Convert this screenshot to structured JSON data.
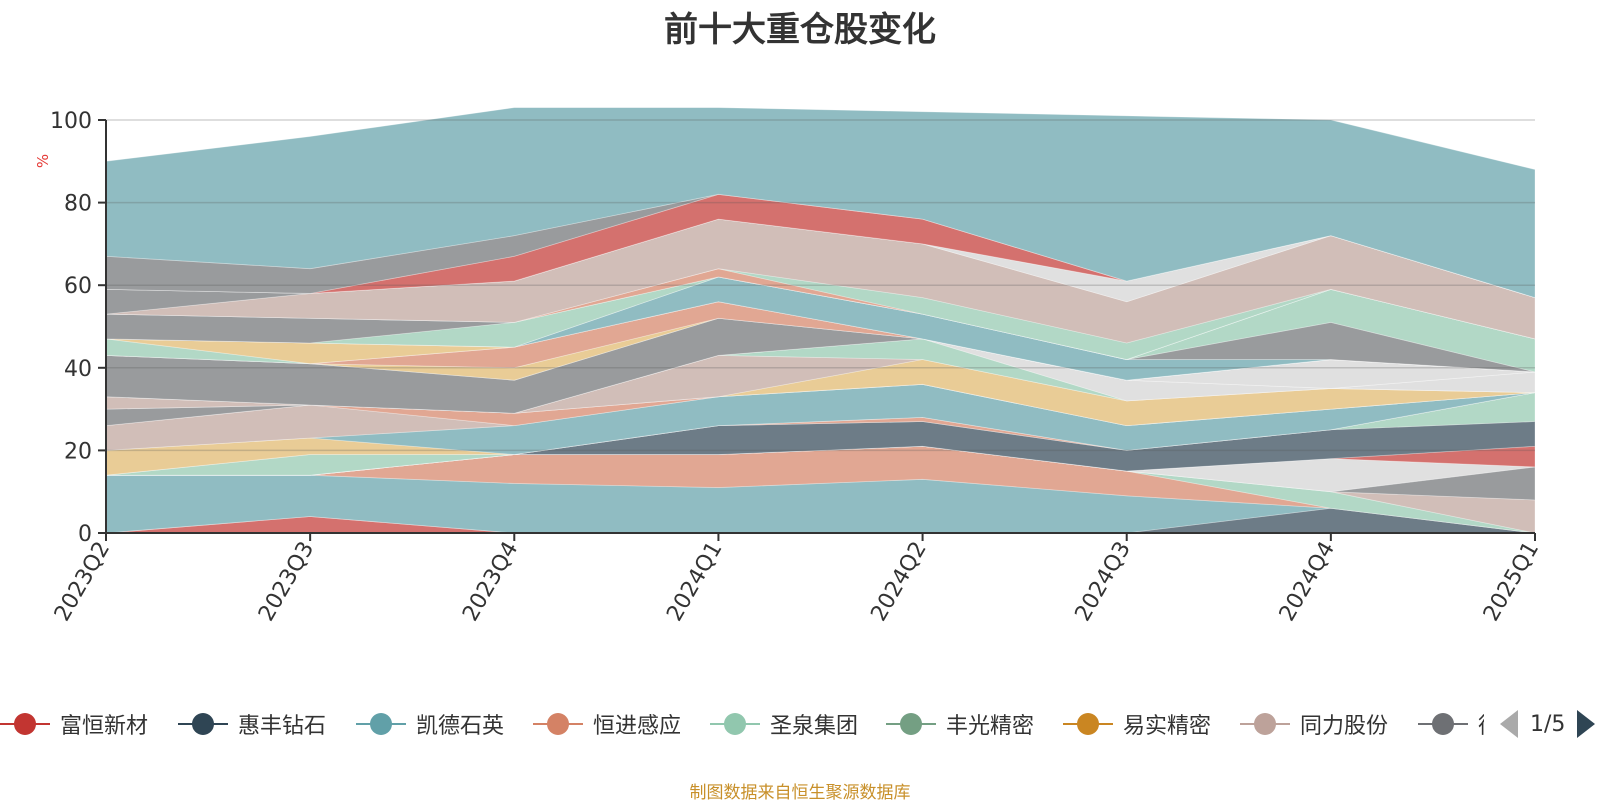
{
  "title": "前十大重仓股变化",
  "source_note": "制图数据来自恒生聚源数据库",
  "legend_pager": "1/5",
  "chart_data": {
    "type": "area",
    "stacked": true,
    "title": "前十大重仓股变化",
    "ylabel": "%",
    "ylim": [
      0,
      100
    ],
    "yticks": [
      0,
      20,
      40,
      60,
      80,
      100
    ],
    "grid": true,
    "legend_position": "bottom",
    "categories": [
      "2023Q2",
      "2023Q3",
      "2023Q4",
      "2024Q1",
      "2024Q2",
      "2024Q3",
      "2024Q4",
      "2025Q1"
    ],
    "series": [
      {
        "name": "富恒新材",
        "color": "#c23531",
        "values": [
          0,
          4,
          0,
          0,
          0,
          0,
          0,
          0
        ]
      },
      {
        "name": "",
        "color": "#2f4554",
        "values": [
          0,
          0,
          0,
          0,
          0,
          0,
          6,
          0
        ]
      },
      {
        "name": "",
        "color": "#61a0a8",
        "values": [
          14,
          10,
          12,
          11,
          13,
          9,
          0,
          0
        ]
      },
      {
        "name": "",
        "color": "#d48265",
        "values": [
          0,
          0,
          7,
          8,
          8,
          6,
          0,
          0
        ]
      },
      {
        "name": "",
        "color": "#91c7ae",
        "values": [
          0,
          0,
          0,
          0,
          0,
          0,
          4,
          0
        ]
      },
      {
        "name": "",
        "color": "#bda29a",
        "values": [
          0,
          0,
          0,
          0,
          0,
          0,
          0,
          8
        ]
      },
      {
        "name": "",
        "color": "#6e7074",
        "values": [
          0,
          0,
          0,
          0,
          0,
          0,
          0,
          8
        ]
      },
      {
        "name": "",
        "color": "#d3d3d3",
        "values": [
          0,
          0,
          0,
          0,
          0,
          0,
          8,
          0
        ]
      },
      {
        "name": "",
        "color": "#c23531",
        "values": [
          0,
          0,
          0,
          0,
          0,
          0,
          0,
          5
        ]
      },
      {
        "name": "",
        "color": "#2f4554",
        "values": [
          0,
          0,
          0,
          7,
          6,
          5,
          7,
          6
        ]
      },
      {
        "name": "",
        "color": "#91c7ae",
        "values": [
          0,
          5,
          0,
          0,
          0,
          0,
          0,
          7
        ]
      },
      {
        "name": "",
        "color": "#d48265",
        "values": [
          0,
          0,
          0,
          0,
          1,
          0,
          0,
          0
        ]
      },
      {
        "name": "",
        "color": "#e0b76a",
        "values": [
          6,
          4,
          0,
          0,
          0,
          0,
          0,
          0
        ]
      },
      {
        "name": "",
        "color": "#61a0a8",
        "values": [
          0,
          0,
          7,
          7,
          8,
          6,
          5,
          0
        ]
      },
      {
        "name": "",
        "color": "#bda29a",
        "values": [
          6,
          8,
          0,
          0,
          0,
          0,
          0,
          0
        ]
      },
      {
        "name": "",
        "color": "#d48265",
        "values": [
          0,
          0,
          3,
          0,
          0,
          0,
          0,
          0
        ]
      },
      {
        "name": "",
        "color": "#6e7074",
        "values": [
          4,
          0,
          0,
          0,
          0,
          0,
          0,
          0
        ]
      },
      {
        "name": "",
        "color": "#e0b76a",
        "values": [
          0,
          0,
          0,
          0,
          6,
          6,
          5,
          0
        ]
      },
      {
        "name": "",
        "color": "#bda29a",
        "values": [
          3,
          0,
          0,
          10,
          0,
          0,
          0,
          0
        ]
      },
      {
        "name": "",
        "color": "#91c7ae",
        "values": [
          0,
          0,
          0,
          0,
          5,
          0,
          0,
          0
        ]
      },
      {
        "name": "",
        "color": "#d3d3d3",
        "values": [
          0,
          0,
          0,
          0,
          0,
          5,
          0,
          5
        ]
      },
      {
        "name": "",
        "color": "#6e7074",
        "values": [
          10,
          10,
          8,
          9,
          0,
          0,
          0,
          0
        ]
      },
      {
        "name": "",
        "color": "#d3d3d3",
        "values": [
          0,
          0,
          0,
          0,
          0,
          0,
          7,
          0
        ]
      },
      {
        "name": "",
        "color": "#e0b76a",
        "values": [
          0,
          0,
          3,
          0,
          0,
          0,
          0,
          0
        ]
      },
      {
        "name": "",
        "color": "#d48265",
        "values": [
          0,
          0,
          5,
          4,
          0,
          0,
          0,
          0
        ]
      },
      {
        "name": "",
        "color": "#91c7ae",
        "values": [
          4,
          0,
          0,
          0,
          0,
          0,
          0,
          0
        ]
      },
      {
        "name": "",
        "color": "#e0b76a",
        "values": [
          0,
          5,
          0,
          0,
          0,
          0,
          0,
          0
        ]
      },
      {
        "name": "",
        "color": "#61a0a8",
        "values": [
          0,
          0,
          0,
          6,
          6,
          5,
          0,
          0
        ]
      },
      {
        "name": "",
        "color": "#6e7074",
        "values": [
          0,
          0,
          0,
          0,
          0,
          0,
          9,
          0
        ]
      },
      {
        "name": "",
        "color": "#91c7ae",
        "values": [
          0,
          0,
          6,
          0,
          0,
          0,
          8,
          8
        ]
      },
      {
        "name": "",
        "color": "#6e7074",
        "values": [
          6,
          6,
          0,
          0,
          0,
          0,
          0,
          0
        ]
      },
      {
        "name": "",
        "color": "#d48265",
        "values": [
          0,
          0,
          0,
          2,
          0,
          0,
          0,
          0
        ]
      },
      {
        "name": "",
        "color": "#91c7ae",
        "values": [
          0,
          0,
          0,
          0,
          4,
          4,
          0,
          0
        ]
      },
      {
        "name": "",
        "color": "#bda29a",
        "values": [
          0,
          6,
          10,
          12,
          13,
          10,
          13,
          10
        ]
      },
      {
        "name": "",
        "color": "#6e7074",
        "values": [
          6,
          0,
          0,
          0,
          0,
          0,
          0,
          0
        ]
      },
      {
        "name": "",
        "color": "#d3d3d3",
        "values": [
          0,
          0,
          0,
          0,
          0,
          5,
          0,
          0
        ]
      },
      {
        "name": "",
        "color": "#c23531",
        "values": [
          0,
          0,
          6,
          6,
          6,
          0,
          0,
          0
        ]
      },
      {
        "name": "",
        "color": "#6e7074",
        "values": [
          8,
          6,
          5,
          0,
          0,
          0,
          0,
          0
        ]
      },
      {
        "name": "",
        "color": "#61a0a8",
        "values": [
          23,
          32,
          31,
          21,
          26,
          40,
          28,
          31
        ]
      }
    ]
  },
  "legend_items": [
    {
      "name": "富恒新材",
      "color": "#c23531"
    },
    {
      "name": "惠丰钻石",
      "color": "#2f4554"
    },
    {
      "name": "凯德石英",
      "color": "#61a0a8"
    },
    {
      "name": "恒进感应",
      "color": "#d48265"
    },
    {
      "name": "圣泉集团",
      "color": "#91c7ae"
    },
    {
      "name": "丰光精密",
      "color": "#749f83"
    },
    {
      "name": "易实精密",
      "color": "#ca8622"
    },
    {
      "name": "同力股份",
      "color": "#bda29a"
    },
    {
      "name": "德",
      "color": "#6e7074"
    }
  ]
}
